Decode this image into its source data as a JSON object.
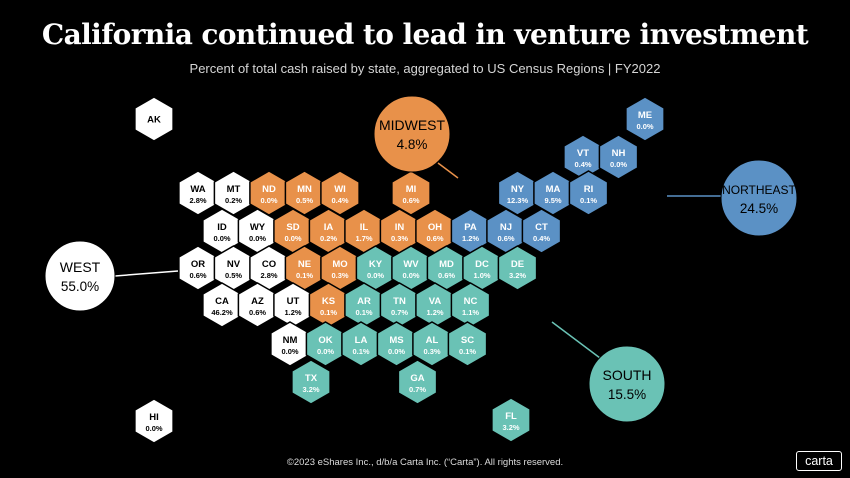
{
  "header": {
    "title": "California continued to lead in venture investment",
    "subtitle": "Percent of total cash raised by state, aggregated to US Census Regions  |  FY2022"
  },
  "footer": {
    "copyright": "©2023 eShares Inc., d/b/a Carta Inc. (“Carta”). All rights reserved.",
    "logo": "carta"
  },
  "colors": {
    "West": "#ffffff",
    "Midwest": "#e8914a",
    "Northeast": "#5b91c5",
    "South": "#6ac2b5",
    "background": "#000000"
  },
  "chart_data": {
    "type": "hex tile map",
    "title": "California continued to lead in venture investment",
    "subtitle": "Percent of total cash raised by state, aggregated to US Census Regions  |  FY2022",
    "regions": [
      {
        "name": "WEST",
        "value": "55.0%"
      },
      {
        "name": "MIDWEST",
        "value": "4.8%"
      },
      {
        "name": "NORTHEAST",
        "value": "24.5%"
      },
      {
        "name": "SOUTH",
        "value": "15.5%"
      }
    ],
    "states": [
      {
        "abbr": "AK",
        "value": "",
        "region": "West",
        "col": 1,
        "row": 0
      },
      {
        "abbr": "ME",
        "value": "0.0%",
        "region": "Northeast",
        "col": 12,
        "row": 0
      },
      {
        "abbr": "VT",
        "value": "0.4%",
        "region": "Northeast",
        "col": 11,
        "row": 1
      },
      {
        "abbr": "NH",
        "value": "0.0%",
        "region": "Northeast",
        "col": 12,
        "row": 1
      },
      {
        "abbr": "WA",
        "value": "2.8%",
        "region": "West",
        "col": 1,
        "row": 2
      },
      {
        "abbr": "MT",
        "value": "0.2%",
        "region": "West",
        "col": 2,
        "row": 2
      },
      {
        "abbr": "ND",
        "value": "0.0%",
        "region": "Midwest",
        "col": 3,
        "row": 2
      },
      {
        "abbr": "MN",
        "value": "0.5%",
        "region": "Midwest",
        "col": 4,
        "row": 2
      },
      {
        "abbr": "WI",
        "value": "0.4%",
        "region": "Midwest",
        "col": 5,
        "row": 2
      },
      {
        "abbr": "MI",
        "value": "0.6%",
        "region": "Midwest",
        "col": 7,
        "row": 2
      },
      {
        "abbr": "NY",
        "value": "12.3%",
        "region": "Northeast",
        "col": 10,
        "row": 2
      },
      {
        "abbr": "MA",
        "value": "9.5%",
        "region": "Northeast",
        "col": 11,
        "row": 2
      },
      {
        "abbr": "RI",
        "value": "0.1%",
        "region": "Northeast",
        "col": 12,
        "row": 2
      },
      {
        "abbr": "ID",
        "value": "0.0%",
        "region": "West",
        "col": 1,
        "row": 3
      },
      {
        "abbr": "WY",
        "value": "0.0%",
        "region": "West",
        "col": 2,
        "row": 3
      },
      {
        "abbr": "SD",
        "value": "0.0%",
        "region": "Midwest",
        "col": 3,
        "row": 3
      },
      {
        "abbr": "IA",
        "value": "0.2%",
        "region": "Midwest",
        "col": 4,
        "row": 3
      },
      {
        "abbr": "IL",
        "value": "1.7%",
        "region": "Midwest",
        "col": 5,
        "row": 3
      },
      {
        "abbr": "IN",
        "value": "0.3%",
        "region": "Midwest",
        "col": 6,
        "row": 3
      },
      {
        "abbr": "OH",
        "value": "0.6%",
        "region": "Midwest",
        "col": 7,
        "row": 3
      },
      {
        "abbr": "PA",
        "value": "1.2%",
        "region": "Northeast",
        "col": 8,
        "row": 3
      },
      {
        "abbr": "NJ",
        "value": "0.6%",
        "region": "Northeast",
        "col": 9,
        "row": 3
      },
      {
        "abbr": "CT",
        "value": "0.4%",
        "region": "Northeast",
        "col": 10,
        "row": 3
      },
      {
        "abbr": "OR",
        "value": "0.6%",
        "region": "West",
        "col": 1,
        "row": 4
      },
      {
        "abbr": "NV",
        "value": "0.5%",
        "region": "West",
        "col": 2,
        "row": 4
      },
      {
        "abbr": "CO",
        "value": "2.8%",
        "region": "West",
        "col": 3,
        "row": 4
      },
      {
        "abbr": "NE",
        "value": "0.1%",
        "region": "Midwest",
        "col": 4,
        "row": 4
      },
      {
        "abbr": "MO",
        "value": "0.3%",
        "region": "Midwest",
        "col": 5,
        "row": 4
      },
      {
        "abbr": "KY",
        "value": "0.0%",
        "region": "South",
        "col": 6,
        "row": 4
      },
      {
        "abbr": "WV",
        "value": "0.0%",
        "region": "South",
        "col": 7,
        "row": 4
      },
      {
        "abbr": "MD",
        "value": "0.6%",
        "region": "South",
        "col": 8,
        "row": 4
      },
      {
        "abbr": "DC",
        "value": "1.0%",
        "region": "South",
        "col": 9,
        "row": 4
      },
      {
        "abbr": "DE",
        "value": "3.2%",
        "region": "South",
        "col": 10,
        "row": 4
      },
      {
        "abbr": "CA",
        "value": "46.2%",
        "region": "West",
        "col": 1,
        "row": 5
      },
      {
        "abbr": "AZ",
        "value": "0.6%",
        "region": "West",
        "col": 2,
        "row": 5
      },
      {
        "abbr": "UT",
        "value": "1.2%",
        "region": "West",
        "col": 3,
        "row": 5
      },
      {
        "abbr": "KS",
        "value": "0.1%",
        "region": "Midwest",
        "col": 4,
        "row": 5
      },
      {
        "abbr": "AR",
        "value": "0.1%",
        "region": "South",
        "col": 5,
        "row": 5
      },
      {
        "abbr": "TN",
        "value": "0.7%",
        "region": "South",
        "col": 6,
        "row": 5
      },
      {
        "abbr": "VA",
        "value": "1.2%",
        "region": "South",
        "col": 7,
        "row": 5
      },
      {
        "abbr": "NC",
        "value": "1.1%",
        "region": "South",
        "col": 8,
        "row": 5
      },
      {
        "abbr": "NM",
        "value": "0.0%",
        "region": "West",
        "col": 3,
        "row": 6
      },
      {
        "abbr": "OK",
        "value": "0.0%",
        "region": "South",
        "col": 4,
        "row": 6
      },
      {
        "abbr": "LA",
        "value": "0.1%",
        "region": "South",
        "col": 5,
        "row": 6
      },
      {
        "abbr": "MS",
        "value": "0.0%",
        "region": "South",
        "col": 6,
        "row": 6
      },
      {
        "abbr": "AL",
        "value": "0.3%",
        "region": "South",
        "col": 7,
        "row": 6
      },
      {
        "abbr": "SC",
        "value": "0.1%",
        "region": "South",
        "col": 8,
        "row": 6
      },
      {
        "abbr": "TX",
        "value": "3.2%",
        "region": "South",
        "col": 4,
        "row": 7
      },
      {
        "abbr": "GA",
        "value": "0.7%",
        "region": "South",
        "col": 7,
        "row": 7
      },
      {
        "abbr": "HI",
        "value": "0.0%",
        "region": "West",
        "col": 1,
        "row": 9
      },
      {
        "abbr": "FL",
        "value": "3.2%",
        "region": "South",
        "col": 8,
        "row": 8
      }
    ]
  }
}
